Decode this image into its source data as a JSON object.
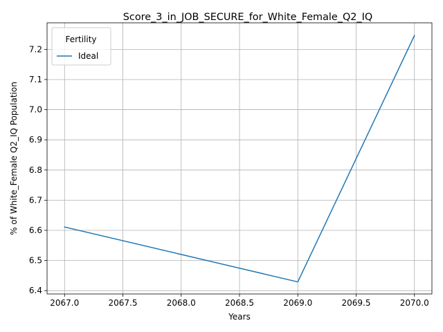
{
  "chart_data": {
    "type": "line",
    "title": "Score_3_in_JOB_SECURE_for_White_Female_Q2_IQ",
    "xlabel": "Years",
    "ylabel": "% of White_Female Q2_IQ Population",
    "xlim": [
      2066.85,
      2070.15
    ],
    "ylim": [
      6.389,
      7.288
    ],
    "x_ticks": [
      2067.0,
      2067.5,
      2068.0,
      2068.5,
      2069.0,
      2069.5,
      2070.0
    ],
    "x_tick_labels": [
      "2067.0",
      "2067.5",
      "2068.0",
      "2068.5",
      "2069.0",
      "2069.5",
      "2070.0"
    ],
    "y_ticks": [
      6.4,
      6.5,
      6.6,
      6.7,
      6.8,
      6.9,
      7.0,
      7.1,
      7.2
    ],
    "y_tick_labels": [
      "6.4",
      "6.5",
      "6.6",
      "6.7",
      "6.8",
      "6.9",
      "7.0",
      "7.1",
      "7.2"
    ],
    "grid": true,
    "legend": {
      "title": "Fertility",
      "placement": "top-left"
    },
    "series": [
      {
        "name": "Ideal",
        "color": "#1f77b4",
        "x": [
          2067,
          2069,
          2070
        ],
        "y": [
          6.611,
          6.429,
          7.246
        ]
      }
    ]
  }
}
